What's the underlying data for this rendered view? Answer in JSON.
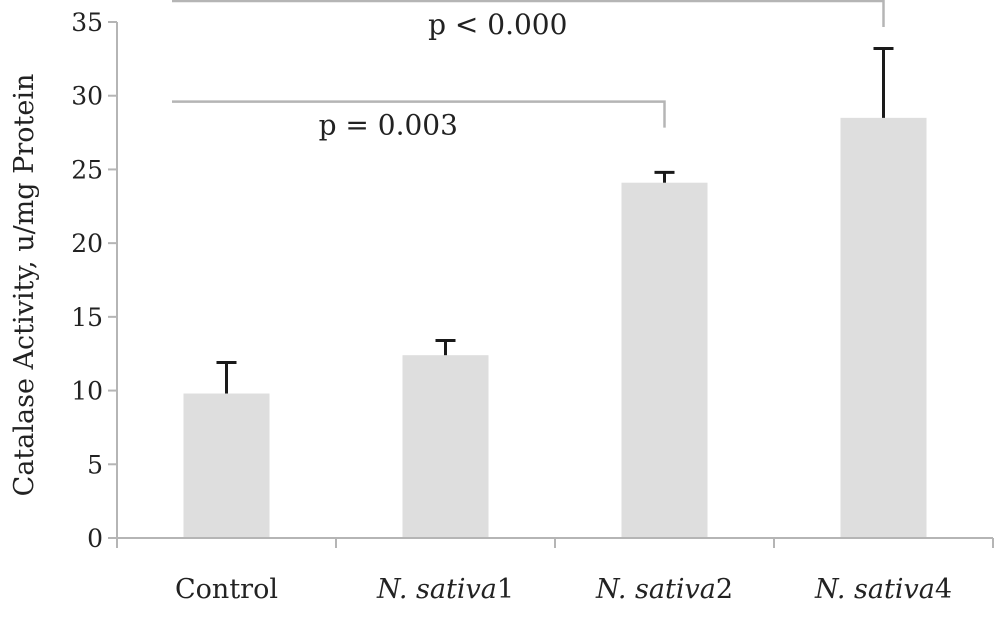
{
  "chart_data": {
    "type": "bar",
    "title": "",
    "xlabel": "",
    "ylabel": "Catalase Activity, u/mg Protein",
    "ylim": [
      0,
      35
    ],
    "yticks": [
      0,
      5,
      10,
      15,
      20,
      25,
      30,
      35
    ],
    "grid": false,
    "categories": [
      {
        "italic": "",
        "plain": "Control"
      },
      {
        "italic": "N. sativa",
        "plain": "1"
      },
      {
        "italic": "N. sativa",
        "plain": "2"
      },
      {
        "italic": "N. sativa",
        "plain": "4"
      }
    ],
    "values": [
      9.8,
      12.4,
      24.1,
      28.5
    ],
    "error_upper": [
      11.9,
      13.4,
      24.8,
      33.2
    ],
    "annotations": [
      {
        "text": "p = 0.003",
        "from": 0,
        "to": 2,
        "y": 29.6
      },
      {
        "text": "p < 0.000",
        "from": 0,
        "to": 3,
        "y": 36.5
      }
    ],
    "colors": {
      "bar": "#dedede",
      "axis": "#b5b5b5",
      "error": "#1a1a1a",
      "bracket": "#b5b5b5"
    }
  }
}
